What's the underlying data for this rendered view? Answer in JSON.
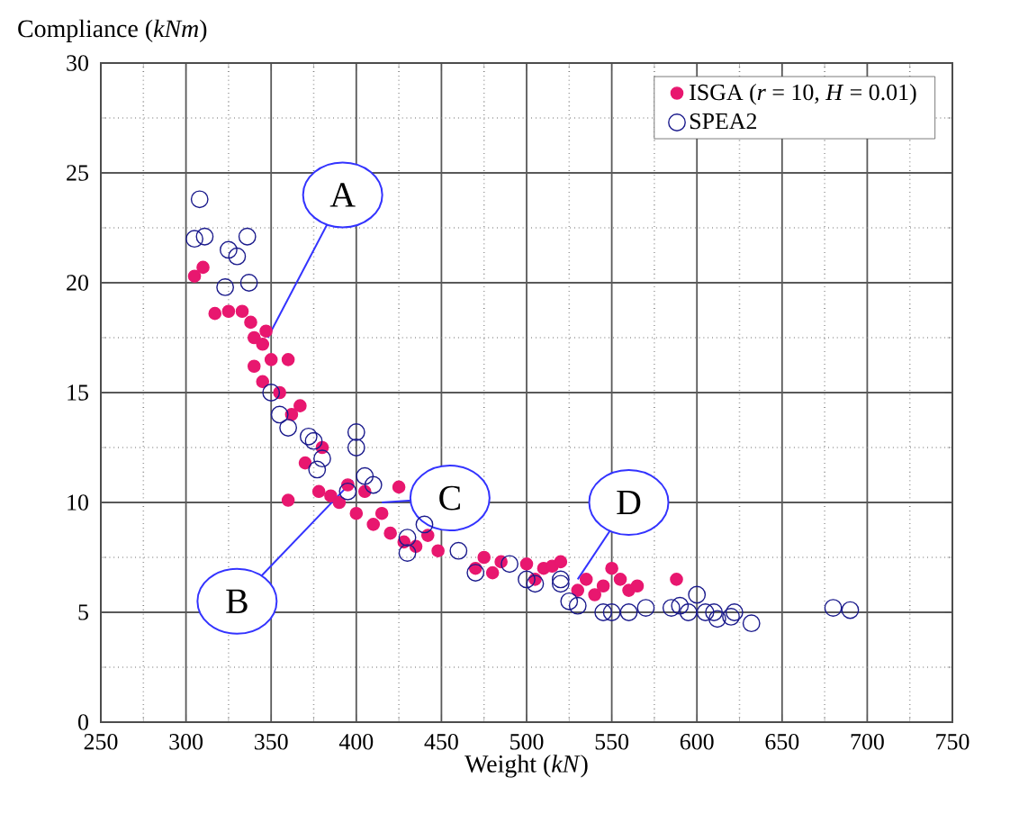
{
  "chart_data": {
    "type": "scatter",
    "xlabel": "Weight (*kN*)",
    "ylabel": "Compliance (*kNm*)",
    "xlim": [
      250,
      750
    ],
    "ylim": [
      0,
      30
    ],
    "xticks": [
      250,
      300,
      350,
      400,
      450,
      500,
      550,
      600,
      650,
      700,
      750
    ],
    "yticks": [
      0,
      5,
      10,
      15,
      20,
      25,
      30
    ],
    "grid": true,
    "legend": "top right",
    "marker": "circle",
    "series": [
      {
        "name": "ISGA (*r* = 10, *H* = 0.01)",
        "color": "#e8176f",
        "x": [
          305,
          310,
          317,
          325,
          333,
          338,
          340,
          345,
          347,
          340,
          345,
          350,
          360,
          355,
          362,
          367,
          370,
          380,
          360,
          378,
          385,
          390,
          395,
          400,
          405,
          410,
          415,
          420,
          425,
          428,
          435,
          442,
          448,
          470,
          475,
          480,
          485,
          500,
          505,
          510,
          515,
          520,
          530,
          535,
          540,
          545,
          550,
          555,
          560,
          565,
          588
        ],
        "values": [
          20.3,
          20.7,
          18.6,
          18.7,
          18.7,
          18.2,
          17.5,
          17.2,
          17.8,
          16.2,
          15.5,
          16.5,
          16.5,
          15,
          14,
          14.4,
          11.8,
          12.5,
          10.1,
          10.5,
          10.3,
          10,
          10.8,
          9.5,
          10.5,
          9,
          9.5,
          8.6,
          10.7,
          8.2,
          8,
          8.5,
          7.8,
          7,
          7.5,
          6.8,
          7.3,
          7.2,
          6.5,
          7,
          7.1,
          7.3,
          6,
          6.5,
          5.8,
          6.2,
          7,
          6.5,
          6,
          6.2,
          6.5
        ]
      },
      {
        "name": "SPEA2",
        "color": "#1a1a8c",
        "x": [
          308,
          305,
          311,
          325,
          330,
          336,
          323,
          337,
          350,
          355,
          360,
          372,
          375,
          380,
          377,
          400,
          400,
          405,
          410,
          395,
          430,
          440,
          430,
          460,
          470,
          490,
          500,
          505,
          520,
          525,
          530,
          520,
          545,
          550,
          560,
          570,
          585,
          590,
          595,
          600,
          605,
          610,
          612,
          620,
          622,
          632,
          680,
          690
        ],
        "values": [
          23.8,
          22,
          22.1,
          21.5,
          21.2,
          22.1,
          19.8,
          20,
          15,
          14,
          13.4,
          13,
          12.8,
          12,
          11.5,
          13.2,
          12.5,
          11.2,
          10.8,
          10.5,
          8.4,
          9,
          7.7,
          7.8,
          6.8,
          7.2,
          6.5,
          6.3,
          6.3,
          5.5,
          5.3,
          6.5,
          5,
          5,
          5,
          5.2,
          5.2,
          5.3,
          5,
          5.8,
          5,
          5,
          4.7,
          4.8,
          5,
          4.5,
          5.2,
          5.1
        ]
      }
    ],
    "annotations": [
      {
        "text": "A",
        "x": 348,
        "y": 17.5
      },
      {
        "text": "B",
        "x": 398,
        "y": 11
      },
      {
        "text": "C",
        "x": 415,
        "y": 10
      },
      {
        "text": "D",
        "x": 530,
        "y": 6.5
      }
    ]
  }
}
